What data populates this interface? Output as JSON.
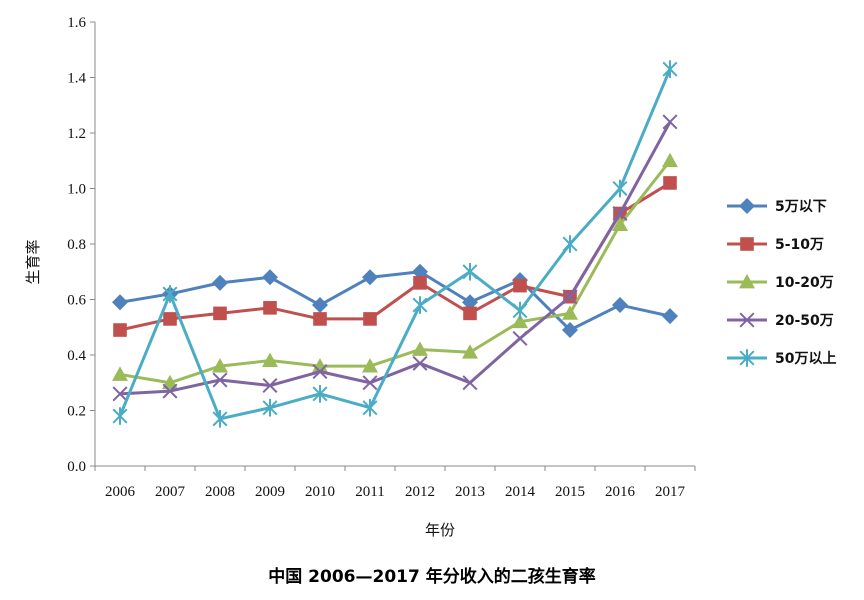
{
  "caption": "中国 2006—2017 年分收入的二孩生育率",
  "chart_data": {
    "type": "line",
    "title": "",
    "xlabel": "年份",
    "ylabel": "生育率",
    "categories": [
      "2006",
      "2007",
      "2008",
      "2009",
      "2010",
      "2011",
      "2012",
      "2013",
      "2014",
      "2015",
      "2016",
      "2017"
    ],
    "ylim": [
      0,
      1.6
    ],
    "yticks": [
      "0.0",
      "0.2",
      "0.4",
      "0.6",
      "0.8",
      "1.0",
      "1.2",
      "1.4",
      "1.6"
    ],
    "grid": false,
    "legend": "right",
    "series": [
      {
        "name": "5万以下",
        "color": "#4F81BD",
        "marker": "diamond",
        "values": [
          0.59,
          0.62,
          0.66,
          0.68,
          0.58,
          0.68,
          0.7,
          0.59,
          0.67,
          0.49,
          0.58,
          0.54
        ]
      },
      {
        "name": "5-10万",
        "color": "#C0504D",
        "marker": "square",
        "values": [
          0.49,
          0.53,
          0.55,
          0.57,
          0.53,
          0.53,
          0.66,
          0.55,
          0.65,
          0.61,
          0.91,
          1.02
        ]
      },
      {
        "name": "10-20万",
        "color": "#9BBB59",
        "marker": "triangle",
        "values": [
          0.33,
          0.3,
          0.36,
          0.38,
          0.36,
          0.36,
          0.42,
          0.41,
          0.52,
          0.55,
          0.87,
          1.1
        ]
      },
      {
        "name": "20-50万",
        "color": "#8064A2",
        "marker": "x",
        "values": [
          0.26,
          0.27,
          0.31,
          0.29,
          0.34,
          0.3,
          0.37,
          0.3,
          0.46,
          0.61,
          0.91,
          1.24
        ]
      },
      {
        "name": "50万以上",
        "color": "#4BACC6",
        "marker": "star",
        "values": [
          0.18,
          0.62,
          0.17,
          0.21,
          0.26,
          0.21,
          0.58,
          0.7,
          0.56,
          0.8,
          1.0,
          1.43
        ]
      }
    ]
  }
}
